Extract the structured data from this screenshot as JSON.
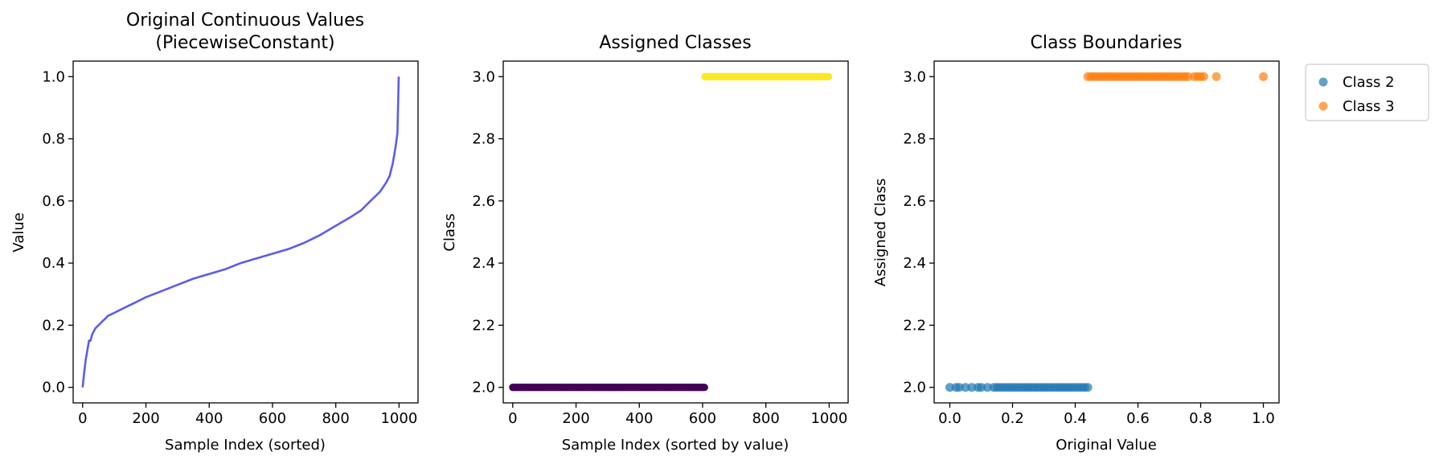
{
  "chart_data": [
    {
      "type": "line",
      "title_lines": [
        "Original Continuous Values",
        "(PiecewiseConstant)"
      ],
      "xlabel": "Sample Index (sorted)",
      "ylabel": "Value",
      "xlim": [
        -30,
        1060
      ],
      "ylim": [
        -0.05,
        1.05
      ],
      "xticks": [
        0,
        200,
        400,
        600,
        800,
        1000
      ],
      "xtick_labels": [
        "0",
        "200",
        "400",
        "600",
        "800",
        "1000"
      ],
      "yticks": [
        0.0,
        0.2,
        0.4,
        0.6,
        0.8,
        1.0
      ],
      "ytick_labels": [
        "0.0",
        "0.2",
        "0.4",
        "0.6",
        "0.8",
        "1.0"
      ],
      "color": "#4040e8",
      "series": [
        {
          "x": [
            0,
            5,
            10,
            15,
            20,
            25,
            30,
            40,
            50,
            60,
            70,
            80,
            90,
            100,
            120,
            140,
            160,
            180,
            200,
            250,
            300,
            350,
            400,
            450,
            500,
            550,
            600,
            650,
            700,
            750,
            800,
            850,
            880,
            900,
            920,
            940,
            950,
            960,
            970,
            980,
            985,
            990,
            995,
            999
          ],
          "y": [
            0.0,
            0.05,
            0.09,
            0.12,
            0.15,
            0.15,
            0.17,
            0.19,
            0.2,
            0.21,
            0.22,
            0.23,
            0.235,
            0.24,
            0.25,
            0.26,
            0.27,
            0.28,
            0.29,
            0.31,
            0.33,
            0.35,
            0.365,
            0.38,
            0.4,
            0.415,
            0.43,
            0.445,
            0.465,
            0.49,
            0.52,
            0.55,
            0.57,
            0.59,
            0.61,
            0.63,
            0.645,
            0.66,
            0.68,
            0.72,
            0.75,
            0.78,
            0.82,
            1.0
          ]
        }
      ]
    },
    {
      "type": "scatter",
      "title": "Assigned Classes",
      "xlabel": "Sample Index (sorted by value)",
      "ylabel": "Class",
      "xlim": [
        -30,
        1060
      ],
      "ylim": [
        1.95,
        3.05
      ],
      "xticks": [
        0,
        200,
        400,
        600,
        800,
        1000
      ],
      "xtick_labels": [
        "0",
        "200",
        "400",
        "600",
        "800",
        "1000"
      ],
      "yticks": [
        2.0,
        2.2,
        2.4,
        2.6,
        2.8,
        3.0
      ],
      "ytick_labels": [
        "2.0",
        "2.2",
        "2.4",
        "2.6",
        "2.8",
        "3.0"
      ],
      "series": [
        {
          "x_range": [
            0,
            607
          ],
          "y": 2.0,
          "color": "#440154"
        },
        {
          "x_range": [
            608,
            999
          ],
          "y": 3.0,
          "color": "#fde725"
        }
      ]
    },
    {
      "type": "scatter",
      "title": "Class Boundaries",
      "xlabel": "Original Value",
      "ylabel": "Assigned Class",
      "xlim": [
        -0.05,
        1.05
      ],
      "ylim": [
        1.95,
        3.05
      ],
      "xticks": [
        0.0,
        0.2,
        0.4,
        0.6,
        0.8,
        1.0
      ],
      "xtick_labels": [
        "0.0",
        "0.2",
        "0.4",
        "0.6",
        "0.8",
        "1.0"
      ],
      "yticks": [
        2.0,
        2.2,
        2.4,
        2.6,
        2.8,
        3.0
      ],
      "ytick_labels": [
        "2.0",
        "2.2",
        "2.4",
        "2.6",
        "2.8",
        "3.0"
      ],
      "legend": {
        "placement": "outside-upper-right",
        "entries": [
          "Class 2",
          "Class 3"
        ]
      },
      "series": [
        {
          "name": "Class 2",
          "color": "#1f77b4",
          "y": 2.0,
          "x": [
            0.0,
            0.02,
            0.03,
            0.05,
            0.07,
            0.09,
            0.1,
            0.12,
            0.14,
            0.15,
            0.16,
            0.17,
            0.18,
            0.19,
            0.2,
            0.21,
            0.22,
            0.23,
            0.24,
            0.25,
            0.26,
            0.27,
            0.28,
            0.29,
            0.3,
            0.31,
            0.32,
            0.33,
            0.34,
            0.35,
            0.36,
            0.37,
            0.38,
            0.39,
            0.4,
            0.41,
            0.42,
            0.43,
            0.44
          ]
        },
        {
          "name": "Class 3",
          "color": "#ff7f0e",
          "y": 3.0,
          "x": [
            0.44,
            0.45,
            0.46,
            0.47,
            0.48,
            0.49,
            0.5,
            0.51,
            0.52,
            0.53,
            0.54,
            0.55,
            0.56,
            0.57,
            0.58,
            0.59,
            0.6,
            0.61,
            0.62,
            0.63,
            0.64,
            0.65,
            0.66,
            0.67,
            0.68,
            0.69,
            0.7,
            0.71,
            0.72,
            0.73,
            0.74,
            0.75,
            0.76,
            0.78,
            0.79,
            0.8,
            0.81,
            0.85,
            1.0
          ]
        }
      ]
    }
  ]
}
